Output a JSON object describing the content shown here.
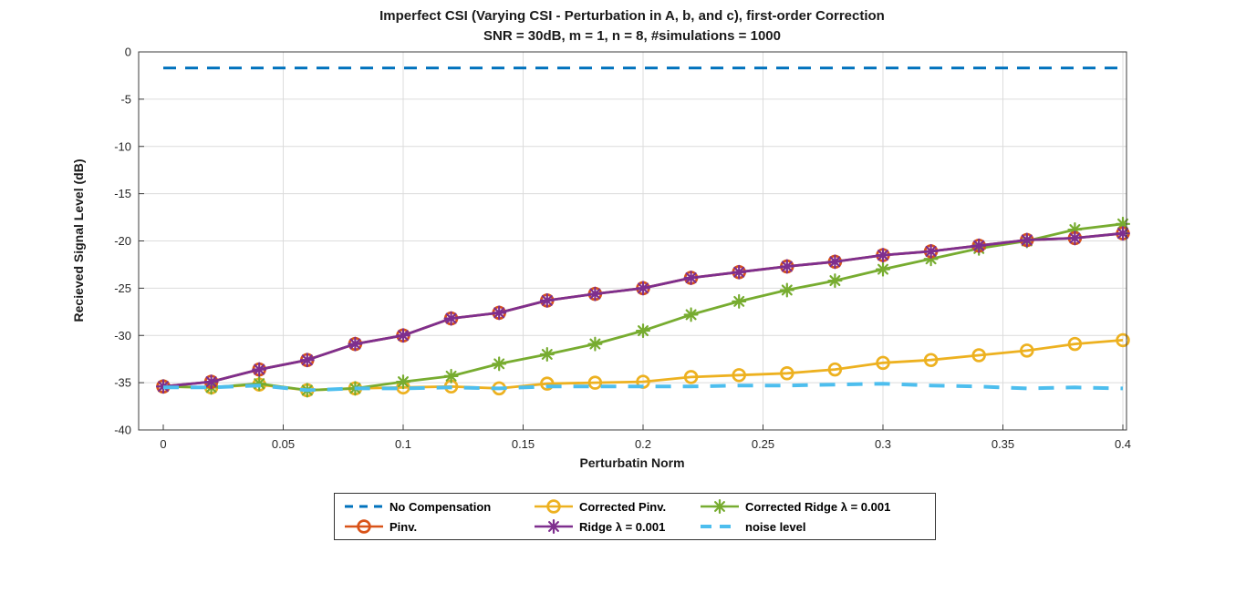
{
  "chart_data": {
    "type": "line",
    "title": "Imperfect CSI (Varying CSI - Perturbation in A, b, and c), first-order Correction",
    "subtitle": "SNR = 30dB, m = 1, n = 8, #simulations = 1000",
    "xlabel": "Perturbatin Norm",
    "ylabel": "Recieved Signal Level (dB)",
    "xlim": [
      0,
      0.4
    ],
    "ylim": [
      -40,
      0
    ],
    "grid": true,
    "legend_position": "below-axis, 2 rows, boxed",
    "x_ticks": {
      "values": [
        0,
        0.05,
        0.1,
        0.15,
        0.2,
        0.25,
        0.3,
        0.35,
        0.4
      ],
      "labels": [
        "0",
        "0.05",
        "0.1",
        "0.15",
        "0.2",
        "0.25",
        "0.3",
        "0.35",
        "0.4"
      ]
    },
    "y_ticks": {
      "values": [
        0,
        -5,
        -10,
        -15,
        -20,
        -25,
        -30,
        -35,
        -40
      ],
      "labels": [
        "0",
        "-5",
        "-10",
        "-15",
        "-20",
        "-25",
        "-30",
        "-35",
        "-40"
      ]
    },
    "x": [
      0,
      0.02,
      0.04,
      0.06,
      0.08,
      0.1,
      0.12,
      0.14,
      0.16,
      0.18,
      0.2,
      0.22,
      0.24,
      0.26,
      0.28,
      0.3,
      0.32,
      0.34,
      0.36,
      0.38,
      0.4
    ],
    "series": [
      {
        "name": "No Compensation",
        "color": "#0072BD",
        "line": "dashed",
        "weight": "normal",
        "marker": "none",
        "values": [
          -1.7,
          -1.7,
          -1.7,
          -1.7,
          -1.7,
          -1.7,
          -1.7,
          -1.7,
          -1.7,
          -1.7,
          -1.7,
          -1.7,
          -1.7,
          -1.7,
          -1.7,
          -1.7,
          -1.7,
          -1.7,
          -1.7,
          -1.7,
          -1.7
        ]
      },
      {
        "name": "Corrected Pinv.",
        "color": "#EDB120",
        "line": "solid",
        "weight": "normal",
        "marker": "circle",
        "values": [
          -35.4,
          -35.5,
          -35.2,
          -35.8,
          -35.6,
          -35.5,
          -35.4,
          -35.6,
          -35.1,
          -35.0,
          -34.9,
          -34.4,
          -34.2,
          -34.0,
          -33.6,
          -32.9,
          -32.6,
          -32.1,
          -31.6,
          -30.9,
          -30.5
        ]
      },
      {
        "name": "Corrected Ridge λ = 0.001",
        "color": "#77AC30",
        "line": "solid",
        "weight": "normal",
        "marker": "asterisk",
        "values": [
          -35.4,
          -35.5,
          -35.1,
          -35.8,
          -35.6,
          -34.9,
          -34.3,
          -33.0,
          -32.0,
          -30.9,
          -29.5,
          -27.8,
          -26.4,
          -25.2,
          -24.2,
          -23.0,
          -21.9,
          -20.8,
          -20.0,
          -18.8,
          -18.2
        ]
      },
      {
        "name": "Pinv.",
        "color": "#D95319",
        "line": "solid",
        "weight": "normal",
        "marker": "circle",
        "values": [
          -35.4,
          -34.9,
          -33.6,
          -32.6,
          -30.9,
          -30.0,
          -28.2,
          -27.6,
          -26.3,
          -25.6,
          -25.0,
          -23.9,
          -23.3,
          -22.7,
          -22.2,
          -21.5,
          -21.1,
          -20.5,
          -19.9,
          -19.7,
          -19.2
        ]
      },
      {
        "name": "Ridge λ = 0.001",
        "color": "#7E2F8E",
        "line": "solid",
        "weight": "normal",
        "marker": "asterisk",
        "values": [
          -35.4,
          -34.9,
          -33.6,
          -32.6,
          -30.9,
          -30.0,
          -28.2,
          -27.6,
          -26.3,
          -25.6,
          -25.0,
          -23.9,
          -23.3,
          -22.7,
          -22.2,
          -21.5,
          -21.1,
          -20.5,
          -19.9,
          -19.7,
          -19.2
        ]
      },
      {
        "name": "noise level",
        "color": "#4DBEEE",
        "line": "dashed",
        "weight": "thick",
        "marker": "none",
        "values": [
          -35.5,
          -35.5,
          -35.3,
          -35.8,
          -35.6,
          -35.6,
          -35.5,
          -35.6,
          -35.4,
          -35.4,
          -35.4,
          -35.4,
          -35.3,
          -35.3,
          -35.2,
          -35.1,
          -35.3,
          -35.4,
          -35.6,
          -35.5,
          -35.6
        ]
      }
    ],
    "legend": {
      "rows": [
        [
          "No Compensation",
          "Corrected Pinv.",
          "Corrected Ridge λ = 0.001"
        ],
        [
          "Pinv.",
          "Ridge λ = 0.001",
          "noise level"
        ]
      ]
    }
  },
  "colors": {
    "background": "#ffffff",
    "grid": "#dcdcdc",
    "axis": "#3c3c3c",
    "tick_text": "#262626"
  }
}
